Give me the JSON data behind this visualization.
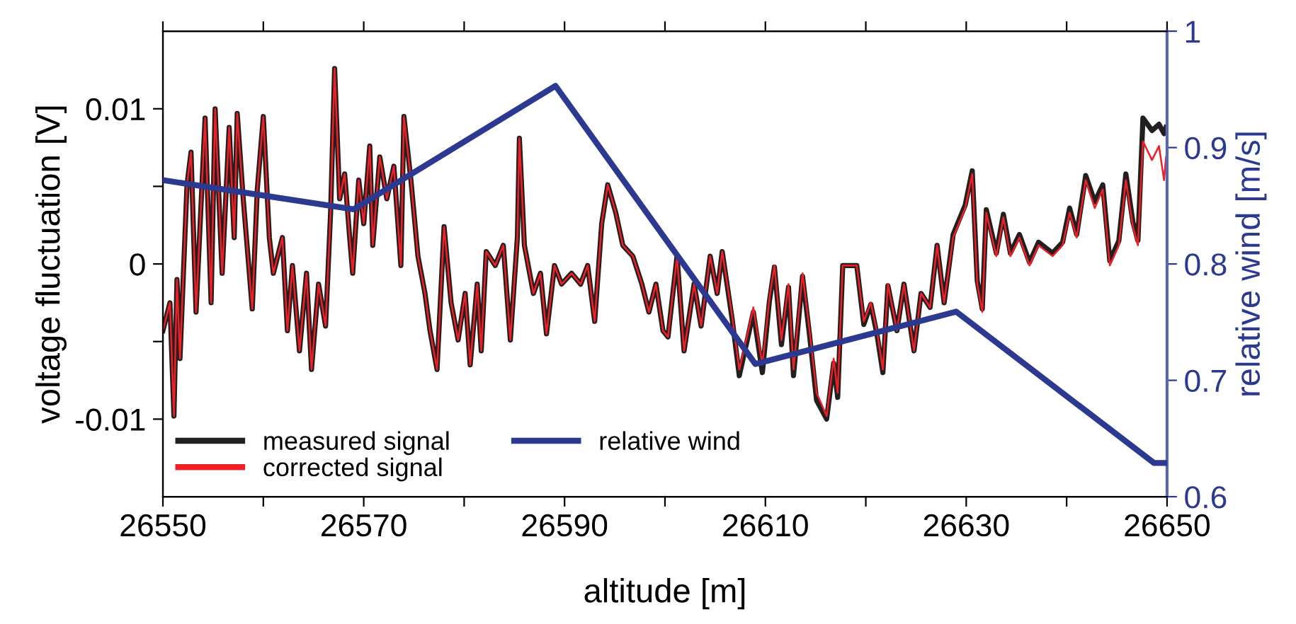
{
  "chart_data": {
    "type": "line",
    "xlabel": "altitude [m]",
    "ylabel": "voltage fluctuation [V]",
    "y2label": "relative wind [m/s]",
    "xlim": [
      26550,
      26650
    ],
    "xticks": [
      26550,
      {
        "value": 26560,
        "label": null
      },
      26570,
      {
        "value": 26580,
        "label": null
      },
      26590,
      {
        "value": 26600,
        "label": null
      },
      26610,
      {
        "value": 26620,
        "label": null
      },
      26630,
      {
        "value": 26640,
        "label": null
      },
      26650
    ],
    "ylim": [
      -0.015,
      0.015
    ],
    "yticks": [
      {
        "value": -0.01,
        "label": "-0.01"
      },
      {
        "value": -0.005,
        "label": null
      },
      0,
      {
        "value": 0.005,
        "label": null
      },
      0.01
    ],
    "y2lim": [
      0.6,
      1
    ],
    "y2ticks": [
      0.6,
      0.7,
      0.8,
      0.9,
      1
    ],
    "grid": false,
    "legend": "bottom left",
    "marker": "none",
    "line_style": "solid",
    "series": [
      {
        "name": "measured signal",
        "color": "#231f20",
        "x": [
          26550.0,
          26550.7,
          26551.1,
          26551.4,
          26551.7,
          26552.4,
          26552.8,
          26553.3,
          26554.2,
          26554.8,
          26555.2,
          26555.9,
          26556.6,
          26557.1,
          26557.4,
          26558.0,
          26558.9,
          26559.4,
          26560.0,
          26560.6,
          26561.0,
          26561.9,
          26562.4,
          26562.9,
          26563.6,
          26564.3,
          26564.8,
          26565.5,
          26566.2,
          26566.7,
          26567.1,
          26567.6,
          26568.1,
          26568.6,
          26568.9,
          26569.5,
          26570.0,
          26570.6,
          26570.9,
          26571.6,
          26572.3,
          26573.0,
          26573.7,
          26574.0,
          26574.7,
          26575.4,
          26576.1,
          26576.6,
          26577.3,
          26578.0,
          26578.7,
          26579.4,
          26580.1,
          26580.6,
          26581.3,
          26581.7,
          26582.2,
          26583.1,
          26583.9,
          26584.6,
          26585.3,
          26585.5,
          26586.0,
          26586.9,
          26587.6,
          26588.2,
          26589.0,
          26589.7,
          26590.7,
          26591.6,
          26592.3,
          26593.0,
          26593.7,
          26594.3,
          26595.1,
          26595.8,
          26596.8,
          26597.7,
          26598.4,
          26599.1,
          26599.8,
          26600.3,
          26601.2,
          26601.9,
          26602.9,
          26603.6,
          26604.5,
          26605.2,
          26605.7,
          26606.7,
          26607.4,
          26608.3,
          26608.8,
          26609.7,
          26610.4,
          26610.9,
          26611.6,
          26612.3,
          26612.8,
          26613.7,
          26614.4,
          26615.1,
          26616.1,
          26616.8,
          26617.2,
          26617.7,
          26619.1,
          26619.8,
          26620.5,
          26621.1,
          26621.7,
          26622.2,
          26623.1,
          26623.8,
          26624.8,
          26625.5,
          26626.4,
          26627.1,
          26627.8,
          26628.7,
          26629.9,
          26630.6,
          26631.1,
          26631.6,
          26632.0,
          26633.0,
          26633.7,
          26634.4,
          26635.3,
          26636.3,
          26637.2,
          26638.6,
          26639.6,
          26640.3,
          26641.0,
          26641.9,
          26642.8,
          26643.6,
          26644.3,
          26645.2,
          26645.9,
          26646.6,
          26647.1,
          26647.6,
          26648.5,
          26649.2,
          26649.7,
          26649.9
        ],
        "values": [
          -0.0043,
          -0.0025,
          -0.0098,
          -0.001,
          -0.0061,
          0.0051,
          0.0072,
          -0.0031,
          0.0094,
          -0.0025,
          0.01,
          -0.0006,
          0.0088,
          0.0017,
          0.0097,
          0.0042,
          -0.0029,
          0.0048,
          0.0095,
          0.0017,
          -0.0006,
          0.0017,
          -0.0043,
          -0.0001,
          -0.0056,
          -0.0006,
          -0.0068,
          -0.0013,
          -0.004,
          0.0033,
          0.0126,
          0.0042,
          0.0058,
          0.0017,
          -0.0006,
          0.0054,
          0.0026,
          0.0076,
          0.0012,
          0.0069,
          0.0042,
          0.0063,
          -0.0001,
          0.0095,
          0.0054,
          0.0005,
          -0.0019,
          -0.0043,
          -0.0068,
          0.0024,
          -0.0025,
          -0.0049,
          -0.0019,
          -0.0065,
          -0.0013,
          -0.0056,
          0.0008,
          -0.0001,
          0.0012,
          -0.0049,
          0.0017,
          0.0081,
          0.0012,
          -0.0019,
          -0.0006,
          -0.0045,
          -0.0001,
          -0.0013,
          -0.0006,
          -0.0013,
          -0.0001,
          -0.0037,
          0.0026,
          0.0051,
          0.0033,
          0.0012,
          0.0005,
          -0.0013,
          -0.0031,
          -0.0013,
          -0.0043,
          -0.0047,
          0.0005,
          -0.0056,
          -0.0013,
          -0.004,
          0.0005,
          -0.0019,
          0.0008,
          -0.0036,
          -0.0072,
          -0.0046,
          -0.0031,
          -0.007,
          -0.0024,
          -0.0002,
          -0.0052,
          -0.0015,
          -0.0072,
          -0.0008,
          -0.0046,
          -0.0088,
          -0.01,
          -0.0064,
          -0.0086,
          -0.0001,
          -0.0001,
          -0.0039,
          -0.0026,
          -0.0045,
          -0.007,
          -0.0014,
          -0.0043,
          -0.0013,
          -0.0056,
          -0.0019,
          -0.0028,
          0.0012,
          -0.0025,
          0.0019,
          0.0038,
          0.006,
          -0.0011,
          -0.0029,
          0.0035,
          0.0007,
          0.0032,
          0.0007,
          0.0019,
          0.0001,
          0.0014,
          0.0007,
          0.0014,
          0.0036,
          0.0019,
          0.0057,
          0.004,
          0.0051,
          0.0002,
          0.0015,
          0.0058,
          0.0027,
          0.0015,
          0.0094,
          0.0086,
          0.009,
          0.0084,
          0.0088
        ]
      },
      {
        "name": "corrected signal",
        "color": "#ee2026",
        "x": [
          26550.0,
          26550.7,
          26551.1,
          26551.4,
          26551.7,
          26552.4,
          26552.8,
          26553.3,
          26554.2,
          26554.8,
          26555.2,
          26555.9,
          26556.6,
          26557.1,
          26557.4,
          26558.0,
          26558.9,
          26559.4,
          26560.0,
          26560.6,
          26561.0,
          26561.9,
          26562.4,
          26562.9,
          26563.6,
          26564.3,
          26564.8,
          26565.5,
          26566.2,
          26566.7,
          26567.1,
          26567.6,
          26568.1,
          26568.6,
          26568.9,
          26569.5,
          26570.0,
          26570.6,
          26570.9,
          26571.6,
          26572.3,
          26573.0,
          26573.7,
          26574.0,
          26574.7,
          26575.4,
          26576.1,
          26576.6,
          26577.3,
          26578.0,
          26578.7,
          26579.4,
          26580.1,
          26580.6,
          26581.3,
          26581.7,
          26582.2,
          26583.1,
          26583.9,
          26584.6,
          26585.3,
          26585.5,
          26586.0,
          26586.9,
          26587.6,
          26588.2,
          26589.0,
          26589.7,
          26590.7,
          26591.6,
          26592.3,
          26593.0,
          26593.7,
          26594.3,
          26595.1,
          26595.8,
          26596.8,
          26597.7,
          26598.4,
          26599.1,
          26599.8,
          26600.3,
          26601.2,
          26601.9,
          26602.9,
          26603.6,
          26604.5,
          26605.2,
          26605.7,
          26606.7,
          26607.4,
          26608.3,
          26608.8,
          26609.7,
          26610.4,
          26610.9,
          26611.6,
          26612.3,
          26612.8,
          26613.7,
          26614.4,
          26615.1,
          26616.1,
          26616.8,
          26617.2,
          26617.7,
          26619.1,
          26619.8,
          26620.5,
          26621.1,
          26621.7,
          26622.2,
          26623.1,
          26623.8,
          26624.8,
          26625.5,
          26626.4,
          26627.1,
          26627.8,
          26628.7,
          26629.9,
          26630.6,
          26631.1,
          26631.6,
          26632.0,
          26633.0,
          26633.7,
          26634.4,
          26635.3,
          26636.3,
          26637.2,
          26638.6,
          26639.6,
          26640.3,
          26641.0,
          26641.9,
          26642.8,
          26643.6,
          26644.3,
          26645.2,
          26645.9,
          26646.6,
          26647.1,
          26647.6,
          26648.5,
          26649.2,
          26649.7,
          26649.9
        ],
        "values": [
          -0.0043,
          -0.0025,
          -0.0098,
          -0.001,
          -0.0061,
          0.0051,
          0.0072,
          -0.0031,
          0.0094,
          -0.0025,
          0.01,
          -0.0006,
          0.0088,
          0.0017,
          0.0097,
          0.0042,
          -0.0029,
          0.0048,
          0.0095,
          0.0017,
          -0.0006,
          0.0017,
          -0.0043,
          -0.0001,
          -0.0056,
          -0.0006,
          -0.0068,
          -0.0013,
          -0.004,
          0.0033,
          0.0126,
          0.0042,
          0.0058,
          0.0017,
          -0.0006,
          0.0054,
          0.0026,
          0.0076,
          0.0012,
          0.0069,
          0.0042,
          0.0063,
          -0.0001,
          0.0095,
          0.0054,
          0.0005,
          -0.0019,
          -0.0043,
          -0.0068,
          0.0024,
          -0.0025,
          -0.0049,
          -0.0019,
          -0.0065,
          -0.0013,
          -0.0056,
          0.0008,
          -0.0001,
          0.0012,
          -0.0049,
          0.0017,
          0.0081,
          0.0012,
          -0.0019,
          -0.0006,
          -0.0045,
          -0.0001,
          -0.0013,
          -0.0006,
          -0.0013,
          -0.0001,
          -0.0037,
          0.0026,
          0.0051,
          0.0033,
          0.0012,
          0.0005,
          -0.0013,
          -0.0031,
          -0.0013,
          -0.0043,
          -0.0047,
          0.0005,
          -0.0056,
          -0.0013,
          -0.004,
          0.0005,
          -0.0019,
          0.0008,
          -0.0034,
          -0.0068,
          -0.0043,
          -0.0028,
          -0.0065,
          -0.0022,
          -0.0001,
          -0.0049,
          -0.0013,
          -0.0068,
          -0.0006,
          -0.0043,
          -0.0083,
          -0.0098,
          -0.0061,
          -0.0083,
          -0.0001,
          -0.0001,
          -0.0037,
          -0.0025,
          -0.0043,
          -0.0068,
          -0.0013,
          -0.0043,
          -0.0013,
          -0.0056,
          -0.0019,
          -0.0028,
          0.0012,
          -0.0025,
          0.0017,
          0.0036,
          0.0058,
          -0.0013,
          -0.0031,
          0.0033,
          0.0005,
          0.003,
          0.0005,
          0.0017,
          -0.0001,
          0.0012,
          0.0005,
          0.0012,
          0.0033,
          0.0017,
          0.0054,
          0.0036,
          0.0048,
          -0.0001,
          0.0012,
          0.0054,
          0.0024,
          0.0012,
          0.0079,
          0.0067,
          0.0076,
          0.0054,
          0.0069
        ]
      },
      {
        "name": "relative wind",
        "color": "#2b3990",
        "axis": "y2",
        "x": [
          26550,
          26569.0,
          26589.1,
          26609.0,
          26629.0,
          26648.7,
          26650
        ],
        "values": [
          0.872,
          0.847,
          0.953,
          0.714,
          0.759,
          0.629,
          0.629
        ]
      }
    ]
  }
}
